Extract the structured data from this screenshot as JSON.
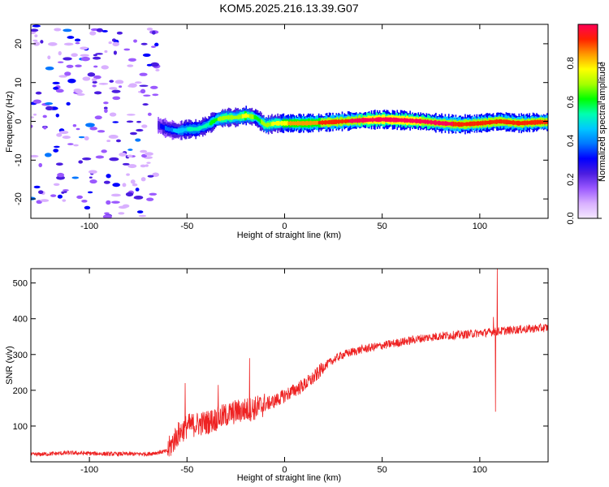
{
  "title": "KOM5.2025.216.13.39.G07",
  "chart_data": [
    {
      "type": "heatmap",
      "xlabel": "Height of straight line (km)",
      "ylabel": "Frequency (Hz)",
      "xlim": [
        -130,
        135
      ],
      "ylim": [
        -25,
        25
      ],
      "xticks": [
        -100,
        -50,
        0,
        50,
        100
      ],
      "yticks": [
        -20,
        -10,
        0,
        10,
        20
      ],
      "grid": false,
      "colorbar": {
        "label": "Normalized spectral amplitude",
        "range": [
          0,
          1
        ],
        "ticks": [
          0.0,
          0.2,
          0.4,
          0.6,
          0.8
        ],
        "colormap": [
          "#f4e8ff",
          "#d9b0ff",
          "#9b59ff",
          "#4b1de0",
          "#0000ff",
          "#0077ff",
          "#00c8ff",
          "#00ffb0",
          "#00ff00",
          "#a6ff00",
          "#ffff00",
          "#ff9900",
          "#ff2200",
          "#ff0055"
        ]
      },
      "ridge": {
        "x": [
          -65,
          -60,
          -55,
          -50,
          -45,
          -40,
          -35,
          -30,
          -25,
          -20,
          -15,
          -10,
          -5,
          0,
          10,
          20,
          30,
          40,
          50,
          60,
          70,
          80,
          90,
          100,
          110,
          120,
          130,
          135
        ],
        "freq": [
          -1,
          -2,
          -2.5,
          -2,
          -2,
          -1,
          0.5,
          1,
          1,
          1.5,
          1,
          -1,
          -0.5,
          -0.5,
          -0.5,
          -0.3,
          0,
          0.3,
          0.5,
          0.3,
          0,
          -0.5,
          -0.8,
          -0.5,
          0,
          -0.5,
          -0.2,
          -0.2
        ],
        "amplitude": [
          0.15,
          0.3,
          0.35,
          0.4,
          0.45,
          0.45,
          0.55,
          0.6,
          0.55,
          0.7,
          0.5,
          0.6,
          0.65,
          0.7,
          0.75,
          0.8,
          0.85,
          0.9,
          0.92,
          0.95,
          0.9,
          0.88,
          0.85,
          0.8,
          0.85,
          0.85,
          0.8,
          0.8
        ]
      },
      "noise_region": {
        "x_range": [
          -130,
          -65
        ],
        "amplitude_range": [
          0.0,
          0.3
        ]
      }
    },
    {
      "type": "line",
      "xlabel": "Height of straight line (km)",
      "ylabel": "SNR (v/v)",
      "xlim": [
        -130,
        135
      ],
      "ylim": [
        0,
        540
      ],
      "xticks": [
        -100,
        -50,
        0,
        50,
        100
      ],
      "yticks": [
        100,
        200,
        300,
        400,
        500
      ],
      "grid": false,
      "color": "#ee2222",
      "trend": {
        "x": [
          -130,
          -110,
          -90,
          -70,
          -60,
          -55,
          -50,
          -45,
          -40,
          -35,
          -30,
          -25,
          -20,
          -15,
          -10,
          -5,
          0,
          5,
          10,
          15,
          20,
          25,
          30,
          40,
          50,
          60,
          70,
          80,
          90,
          100,
          105,
          110,
          120,
          135
        ],
        "y": [
          20,
          25,
          22,
          22,
          30,
          75,
          100,
          105,
          110,
          120,
          130,
          140,
          145,
          150,
          160,
          170,
          185,
          200,
          215,
          235,
          265,
          285,
          300,
          315,
          325,
          335,
          345,
          352,
          355,
          360,
          362,
          365,
          370,
          375
        ]
      },
      "spikes": [
        {
          "x": -51,
          "y": 220
        },
        {
          "x": -34,
          "y": 215
        },
        {
          "x": -18,
          "y": 290
        },
        {
          "x": 107,
          "y": 405
        },
        {
          "x": 108,
          "y": 140
        },
        {
          "x": 109,
          "y": 540
        }
      ],
      "noise_amplitude": [
        {
          "x_from": -130,
          "x_to": -60,
          "amp": 6
        },
        {
          "x_from": -60,
          "x_to": -10,
          "amp": 35
        },
        {
          "x_from": -10,
          "x_to": 20,
          "amp": 20
        },
        {
          "x_from": 20,
          "x_to": 135,
          "amp": 12
        }
      ]
    }
  ]
}
